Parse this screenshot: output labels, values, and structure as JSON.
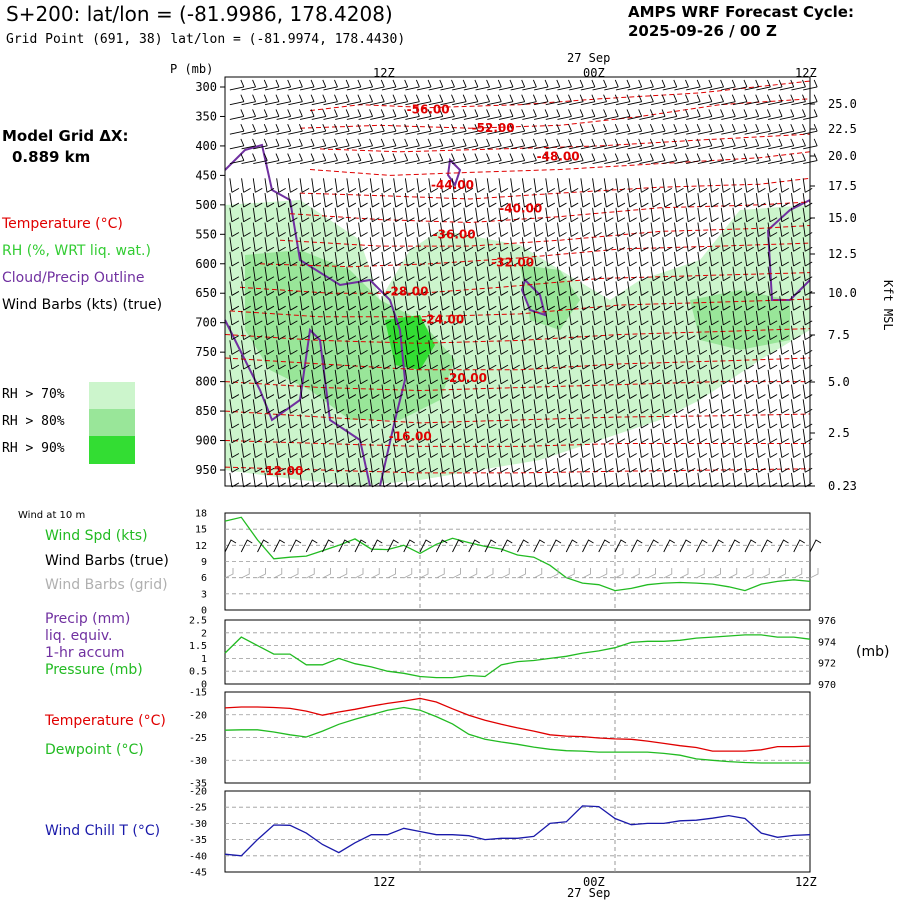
{
  "header": {
    "title": "S+200:  lat/lon = (-81.9986, 178.4208)",
    "subtitle": "Grid Point (691, 38) lat/lon = (-81.9974, 178.4430)",
    "cycle_label": "AMPS WRF Forecast Cycle:",
    "cycle_value": "2025-09-26 / 00  Z",
    "grid_label": "Model Grid ΔX:",
    "grid_value": "0.889 km"
  },
  "legend": {
    "temperature": "Temperature (°C)",
    "rh": "RH (%, WRT liq. wat.)",
    "cloud": "Cloud/Precip Outline",
    "wind": "Wind Barbs (kts) (true)",
    "rh70": "RH > 70%",
    "rh80": "RH > 80%",
    "rh90": "RH > 90%"
  },
  "colors": {
    "temperature": "#e00000",
    "rh_label": "#33cc33",
    "cloud": "#7030a0",
    "rh70": "#ccf5cc",
    "rh80": "#99e699",
    "rh90": "#33dd33",
    "wind_speed": "#22bb22",
    "dewpoint": "#22bb22",
    "wind_chill": "#1a1aaa",
    "precip": "#7030a0",
    "barb_grid": "#aaaaaa"
  },
  "panels": {
    "wind_title": "Wind at 10 m",
    "wind_spd": "Wind Spd (kts)",
    "wind_barbs_true": "Wind Barbs (true)",
    "wind_barbs_grid": "Wind Barbs (grid)",
    "precip_1": "Precip (mm)",
    "precip_2": "liq. equiv.",
    "precip_3": "1-hr accum",
    "pressure": "Pressure (mb)",
    "pressure_unit": "(mb)",
    "temperature": "Temperature (°C)",
    "dewpoint": "Dewpoint (°C)",
    "wind_chill": "Wind Chill T (°C)"
  },
  "time_axis": {
    "top_date": "27 Sep",
    "bottom_date": "27 Sep",
    "ticks": [
      "12Z",
      "00Z",
      "12Z"
    ]
  },
  "chart_data": [
    {
      "type": "heatmap",
      "ylabel": "P (mb)",
      "y2label": "Kft MSL",
      "pressure_levels": [
        300,
        350,
        400,
        450,
        500,
        550,
        600,
        650,
        700,
        750,
        800,
        850,
        900,
        950
      ],
      "height_ticks": [
        "25.0",
        "22.5",
        "20.0",
        "17.5",
        "15.0",
        "12.5",
        "10.0",
        "7.5",
        "5.0",
        "2.5",
        "0.23"
      ],
      "temperature_contours": [
        {
          "label": "-56.00",
          "hour": 12.5,
          "p": 338
        },
        {
          "label": "-52.00",
          "hour": 16.5,
          "p": 370
        },
        {
          "label": "-48.00",
          "hour": 20.5,
          "p": 418
        },
        {
          "label": "-44.00",
          "hour": 14.0,
          "p": 466
        },
        {
          "label": "-40.00",
          "hour": 18.2,
          "p": 506
        },
        {
          "label": "-36.00",
          "hour": 14.1,
          "p": 550
        },
        {
          "label": "-32.00",
          "hour": 17.7,
          "p": 598
        },
        {
          "label": "-28.00",
          "hour": 11.2,
          "p": 647
        },
        {
          "label": "-24.00",
          "hour": 13.4,
          "p": 695
        },
        {
          "label": "-20.00",
          "hour": 14.8,
          "p": 794
        },
        {
          "label": "-16.00",
          "hour": 11.4,
          "p": 893
        },
        {
          "label": "-12.00",
          "hour": 3.5,
          "p": 952
        }
      ]
    },
    {
      "type": "line",
      "title": "Wind Spd (kts)",
      "ylim": [
        0,
        18
      ],
      "yticks": [
        0,
        3,
        6,
        9,
        12,
        15,
        18
      ],
      "x": [
        0,
        1,
        2,
        3,
        4,
        5,
        6,
        7,
        8,
        9,
        10,
        11,
        12,
        13,
        14,
        15,
        16,
        17,
        18,
        19,
        20,
        21,
        22,
        23,
        24,
        25,
        26,
        27,
        28,
        29,
        30,
        31,
        32,
        33,
        34,
        35,
        36
      ],
      "series": [
        {
          "name": "Wind Spd (kts)",
          "values": [
            16.5,
            17.2,
            13.0,
            9.5,
            9.8,
            10.0,
            11.0,
            12.0,
            13.2,
            11.3,
            11.2,
            12.0,
            10.5,
            12.2,
            13.3,
            12.5,
            11.8,
            11.3,
            10.2,
            9.8,
            8.3,
            6.0,
            5.0,
            4.7,
            3.6,
            4.0,
            4.7,
            5.0,
            5.1,
            5.0,
            4.8,
            4.3,
            3.6,
            4.8,
            5.3,
            5.6,
            5.3
          ]
        }
      ]
    },
    {
      "type": "line",
      "title": "Pressure (mb)",
      "ylim": [
        0,
        2.5
      ],
      "yticks": [
        0,
        0.5,
        1.0,
        1.5,
        2.0,
        2.5
      ],
      "y2lim": [
        970,
        976
      ],
      "y2ticks": [
        970,
        972,
        974,
        976
      ],
      "x": [
        0,
        1,
        2,
        3,
        4,
        5,
        6,
        7,
        8,
        9,
        10,
        11,
        12,
        13,
        14,
        15,
        16,
        17,
        18,
        19,
        20,
        21,
        22,
        23,
        24,
        25,
        26,
        27,
        28,
        29,
        30,
        31,
        32,
        33,
        34,
        35,
        36
      ],
      "series": [
        {
          "name": "Pressure (mb)",
          "values": [
            972.9,
            974.4,
            973.6,
            972.8,
            972.8,
            971.8,
            971.8,
            972.4,
            971.9,
            971.6,
            971.2,
            971.0,
            970.7,
            970.6,
            970.6,
            970.8,
            970.7,
            971.8,
            972.1,
            972.2,
            972.4,
            972.6,
            972.9,
            973.1,
            973.4,
            973.9,
            974.0,
            974.0,
            974.1,
            974.3,
            974.4,
            974.5,
            974.6,
            974.6,
            974.4,
            974.4,
            974.2
          ]
        }
      ]
    },
    {
      "type": "line",
      "ylim": [
        -35,
        -15
      ],
      "yticks": [
        -35,
        -30,
        -25,
        -20,
        -15
      ],
      "x": [
        0,
        1,
        2,
        3,
        4,
        5,
        6,
        7,
        8,
        9,
        10,
        11,
        12,
        13,
        14,
        15,
        16,
        17,
        18,
        19,
        20,
        21,
        22,
        23,
        24,
        25,
        26,
        27,
        28,
        29,
        30,
        31,
        32,
        33,
        34,
        35,
        36
      ],
      "series": [
        {
          "name": "Temperature (°C)",
          "values": [
            -18.5,
            -18.3,
            -18.3,
            -18.4,
            -18.6,
            -19.2,
            -20.1,
            -19.4,
            -18.8,
            -18.1,
            -17.5,
            -17.0,
            -16.4,
            -17.2,
            -18.7,
            -20.1,
            -21.2,
            -22.1,
            -22.9,
            -23.6,
            -24.4,
            -24.7,
            -24.8,
            -25.1,
            -25.3,
            -25.4,
            -25.8,
            -26.3,
            -26.8,
            -27.2,
            -28.0,
            -28.0,
            -28.0,
            -27.7,
            -27.0,
            -27.0,
            -26.9
          ]
        },
        {
          "name": "Dewpoint (°C)",
          "values": [
            -23.4,
            -23.3,
            -23.3,
            -23.8,
            -24.4,
            -24.9,
            -23.6,
            -22.1,
            -21.0,
            -20.0,
            -19.0,
            -18.4,
            -19.0,
            -20.4,
            -22.0,
            -24.3,
            -25.4,
            -26.0,
            -26.5,
            -27.1,
            -27.6,
            -27.9,
            -28.0,
            -28.2,
            -28.2,
            -28.2,
            -28.2,
            -28.5,
            -28.9,
            -29.7,
            -30.0,
            -30.3,
            -30.5,
            -30.6,
            -30.6,
            -30.6,
            -30.6
          ]
        }
      ]
    },
    {
      "type": "line",
      "title": "Wind Chill T (°C)",
      "ylim": [
        -45,
        -20
      ],
      "yticks": [
        -45,
        -40,
        -35,
        -30,
        -25,
        -20
      ],
      "x": [
        0,
        1,
        2,
        3,
        4,
        5,
        6,
        7,
        8,
        9,
        10,
        11,
        12,
        13,
        14,
        15,
        16,
        17,
        18,
        19,
        20,
        21,
        22,
        23,
        24,
        25,
        26,
        27,
        28,
        29,
        30,
        31,
        32,
        33,
        34,
        35,
        36
      ],
      "series": [
        {
          "name": "Wind Chill T (°C)",
          "values": [
            -39.5,
            -40.0,
            -35.0,
            -30.5,
            -30.6,
            -33.0,
            -36.5,
            -39.0,
            -36.0,
            -33.5,
            -33.5,
            -31.5,
            -32.5,
            -33.5,
            -33.5,
            -33.8,
            -35.0,
            -34.6,
            -34.6,
            -34.0,
            -30.0,
            -29.5,
            -24.6,
            -24.8,
            -28.5,
            -30.4,
            -30.0,
            -30.0,
            -29.2,
            -29.0,
            -28.4,
            -27.6,
            -28.5,
            -33.0,
            -34.3,
            -33.7,
            -33.5
          ]
        }
      ]
    }
  ]
}
